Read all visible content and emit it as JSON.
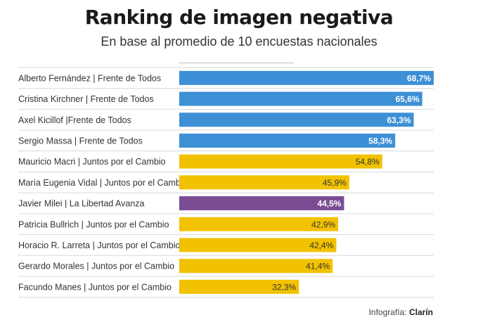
{
  "title": "Ranking de imagen negativa",
  "subtitle": "En base al promedio de 10 encuestas nacionales",
  "footer": {
    "label": "Infografía:",
    "brand": "Clarín"
  },
  "colors": {
    "frente_de_todos": "#3d8fd6",
    "juntos_por_el_cambio": "#f2c200",
    "la_libertad_avanza": "#7b4c94",
    "row_divider": "#d9d9d9",
    "label_text": "#333333"
  },
  "chart_data": {
    "type": "bar",
    "orientation": "horizontal",
    "title": "Ranking de imagen negativa",
    "subtitle": "En base al promedio de 10 encuestas nacionales",
    "xlim": [
      0,
      68.7
    ],
    "grid": false,
    "categories": [
      "Alberto Fernández | Frente de Todos",
      "Cristina Kirchner | Frente de Todos",
      "Axel Kicillof |Frente de Todos",
      "Sergio Massa | Frente de Todos",
      "Mauricio Macri | Juntos por el Cambio",
      "María Eugenia Vidal | Juntos por el Cambio",
      "Javier Milei | La Libertad Avanza",
      "Patricia Bullrich | Juntos por el Cambio",
      "Horacio R. Larreta | Juntos por el Cambio",
      "Gerardo Morales | Juntos por el Cambio",
      "Facundo Manes | Juntos por el Cambio"
    ],
    "values": [
      68.7,
      65.6,
      63.3,
      58.3,
      54.8,
      45.9,
      44.5,
      42.9,
      42.4,
      41.4,
      32.3
    ],
    "value_labels": [
      "68,7%",
      "65,6%",
      "63,3%",
      "58,3%",
      "54,8%",
      "45,9%",
      "44,5%",
      "42,9%",
      "42,4%",
      "41,4%",
      "32,3%"
    ],
    "groups": [
      "frente_de_todos",
      "frente_de_todos",
      "frente_de_todos",
      "frente_de_todos",
      "juntos_por_el_cambio",
      "juntos_por_el_cambio",
      "la_libertad_avanza",
      "juntos_por_el_cambio",
      "juntos_por_el_cambio",
      "juntos_por_el_cambio",
      "juntos_por_el_cambio"
    ]
  }
}
